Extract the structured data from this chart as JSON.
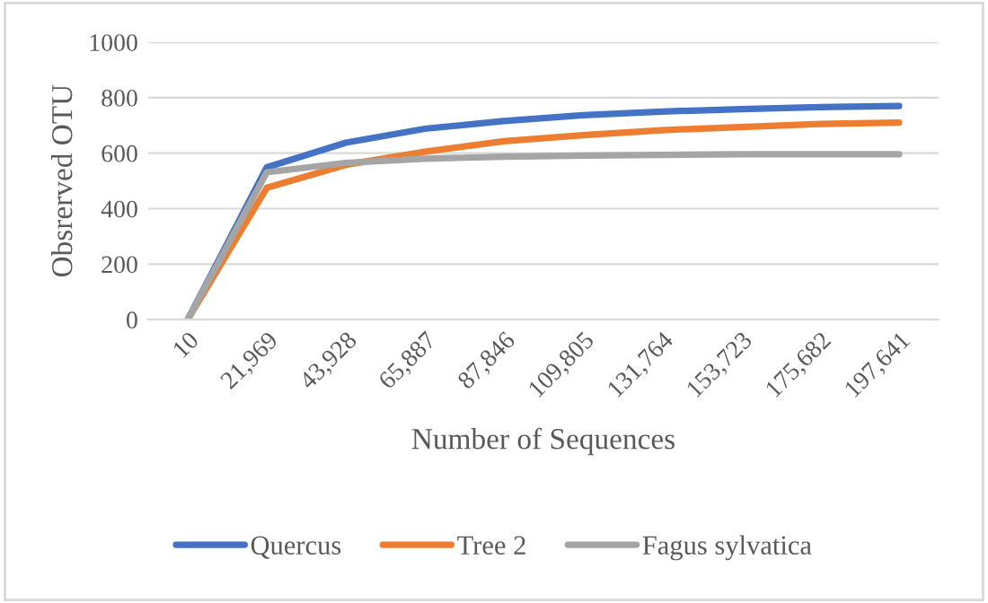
{
  "chart_data": {
    "type": "line",
    "xlabel": "Number of Sequences",
    "ylabel": "Obsrerved OTU",
    "categories": [
      "10",
      "21,969",
      "43,928",
      "65,887",
      "87,846",
      "109,805",
      "131,764",
      "153,723",
      "175,682",
      "197,641"
    ],
    "series": [
      {
        "name": "Quercus",
        "color": "#4472c4",
        "values": [
          0,
          549,
          638,
          688,
          716,
          737,
          750,
          759,
          766,
          770
        ]
      },
      {
        "name": "Tree 2",
        "color": "#ed7d31",
        "values": [
          0,
          475,
          558,
          605,
          643,
          665,
          683,
          694,
          705,
          710
        ]
      },
      {
        "name": "Fagus sylvatica",
        "color": "#a5a5a5",
        "values": [
          0,
          531,
          565,
          580,
          587,
          591,
          594,
          596,
          596,
          596
        ]
      }
    ],
    "ylim": [
      0,
      1000
    ],
    "yticks": [
      0,
      200,
      400,
      600,
      800,
      1000
    ],
    "grid": "y",
    "legend": "bottom",
    "marker": "none",
    "line_style": "solid"
  }
}
